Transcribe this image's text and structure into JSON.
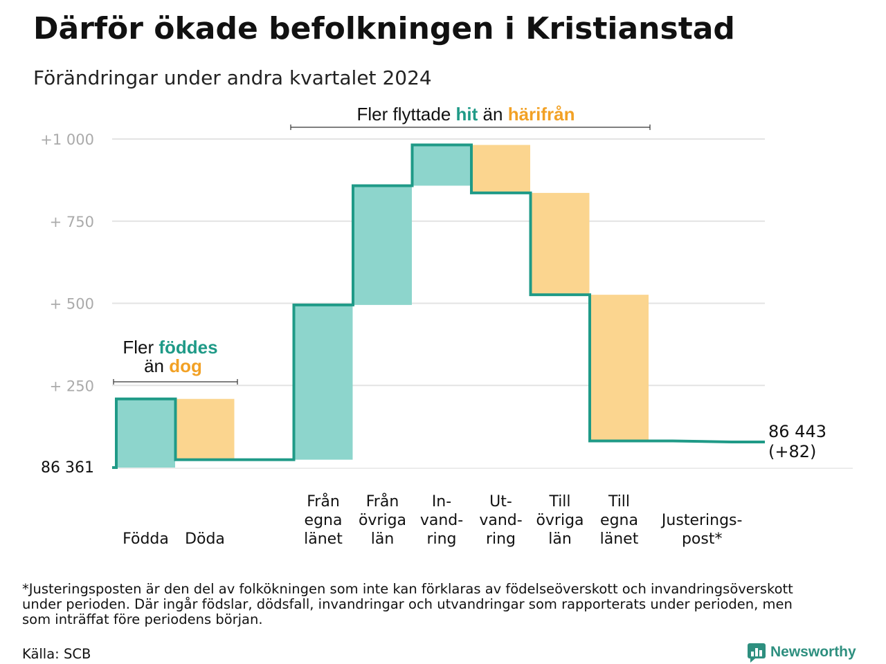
{
  "colors": {
    "increase": "#8dd5cc",
    "decrease": "#fbd58f",
    "line": "#1f9a87",
    "teal_text": "#1f9a87",
    "orange_text": "#f2a125",
    "grid": "#e3e3e3",
    "tick_text": "#aaaaaa",
    "text": "#111111"
  },
  "header": {
    "title": "Därför ökade befolkningen i Kristianstad",
    "subtitle": "Förändringar under andra kvartalet 2024"
  },
  "annotations": {
    "births": {
      "prefix": "Fler ",
      "highlight1": "föddes",
      "middle": "än ",
      "highlight2": "dog"
    },
    "moves": {
      "prefix": "Fler flyttade ",
      "highlight1": "hit",
      "middle": " än ",
      "highlight2": "härifrån"
    }
  },
  "chart_data": {
    "type": "waterfall",
    "title": "Därför ökade befolkningen i Kristianstad",
    "subtitle": "Förändringar under andra kvartalet 2024",
    "baseline": 86361,
    "baseline_label": "86  361",
    "end_value": 86443,
    "end_label": "86 443",
    "end_change_label": "(+82)",
    "y_ticks": [
      {
        "value": 250,
        "label": "+  250"
      },
      {
        "value": 500,
        "label": "+  500"
      },
      {
        "value": 750,
        "label": "+  750"
      },
      {
        "value": 1000,
        "label": "+1   000"
      }
    ],
    "ylim": [
      0,
      1000
    ],
    "grid": true,
    "steps": [
      {
        "label": [
          "Födda"
        ],
        "change": 209,
        "slot": 0
      },
      {
        "label": [
          "Döda"
        ],
        "change": -185,
        "slot": 1
      },
      {
        "label": [
          "Från",
          "egna",
          "länet"
        ],
        "change": 471,
        "slot": 3
      },
      {
        "label": [
          "Från",
          "övriga",
          "län"
        ],
        "change": 363,
        "slot": 4
      },
      {
        "label": [
          "In-",
          "vand-",
          "ring"
        ],
        "change": 124,
        "slot": 5
      },
      {
        "label": [
          "Ut-",
          "vand-",
          "ring"
        ],
        "change": -146,
        "slot": 6
      },
      {
        "label": [
          "Till",
          "övriga",
          "län"
        ],
        "change": -310,
        "slot": 7
      },
      {
        "label": [
          "Till",
          "egna",
          "länet"
        ],
        "change": -445,
        "slot": 8
      },
      {
        "label": [
          "Justerings-",
          "post*"
        ],
        "change": -3,
        "slot": 9.4,
        "line_only": true
      }
    ]
  },
  "footer": {
    "note_lines": [
      "*Justeringsposten är den del av folkökningen som inte kan förklaras av födelseöverskott och invandringsöverskott",
      "under perioden. Där ingår födslar, dödsfall, invandringar och utvandringar som rapporterats under perioden, men",
      "som inträffat före periodens början."
    ],
    "source": "Källa: SCB",
    "brand": "Newsworthy"
  }
}
